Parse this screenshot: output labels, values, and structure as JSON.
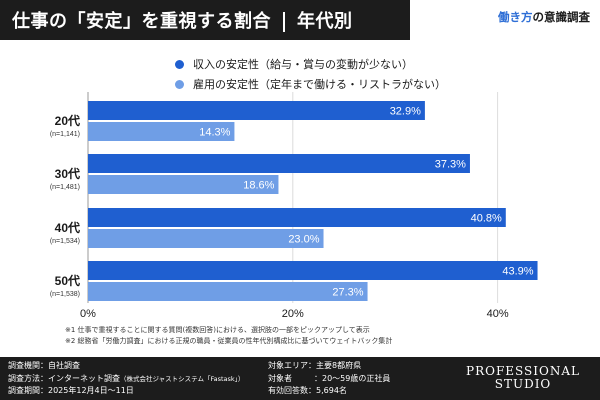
{
  "header": {
    "title": "仕事の「安定」を重視する割合",
    "subtitle": "年代別",
    "brand_prefix": "働き方",
    "brand_suffix": "の意識調査"
  },
  "colors": {
    "series1": "#1f5fd0",
    "series2": "#6f9ee6",
    "dark": "#1c1c1c",
    "accent": "#2f6fd6"
  },
  "chart_data": {
    "type": "bar",
    "orientation": "horizontal",
    "categories": [
      "20代",
      "30代",
      "40代",
      "50代"
    ],
    "category_notes": [
      "(n=1,141)",
      "(n=1,481)",
      "(n=1,534)",
      "(n=1,538)"
    ],
    "series": [
      {
        "name": "収入の安定性（給与・賞与の変動が少ない）",
        "values": [
          32.9,
          37.3,
          40.8,
          43.9
        ]
      },
      {
        "name": "雇用の安定性（定年まで働ける・リストラがない）",
        "values": [
          14.3,
          18.6,
          23.0,
          27.3
        ]
      }
    ],
    "value_labels": [
      [
        "32.9%",
        "37.3%",
        "40.8%",
        "43.9%"
      ],
      [
        "14.3%",
        "18.6%",
        "23.0%",
        "27.3%"
      ]
    ],
    "xlim": [
      0,
      50
    ],
    "x_ticks": [
      "0%",
      "20%",
      "40%"
    ],
    "grid": true,
    "legend": "top"
  },
  "notes": [
    "※1 仕事で重視することに関する質問(複数回答)における、選択肢の一部をピックアップして表示",
    "※2 総務省「労働力調査」における正規の職員・従業員の性年代別構成比に基づいてウェイトバック集計"
  ],
  "footer": {
    "agency_key": "調査機関：",
    "agency_val": "自社調査",
    "method_key": "調査方法：",
    "method_val": "インターネット調査",
    "method_note": "（株式会社ジャストシステム「Fastask」）",
    "period_key": "調査期間：",
    "period_val": "2025年12月4日〜11日",
    "area_key": "対象エリア：",
    "area_val": "主要8都府県",
    "target_key": "対象者",
    "target_val": "：20〜59歳の正社員",
    "count_key": "有効回答数：",
    "count_val": "5,694名",
    "logo_line1": "PROFESSIONAL",
    "logo_line2": "STUDIO"
  }
}
